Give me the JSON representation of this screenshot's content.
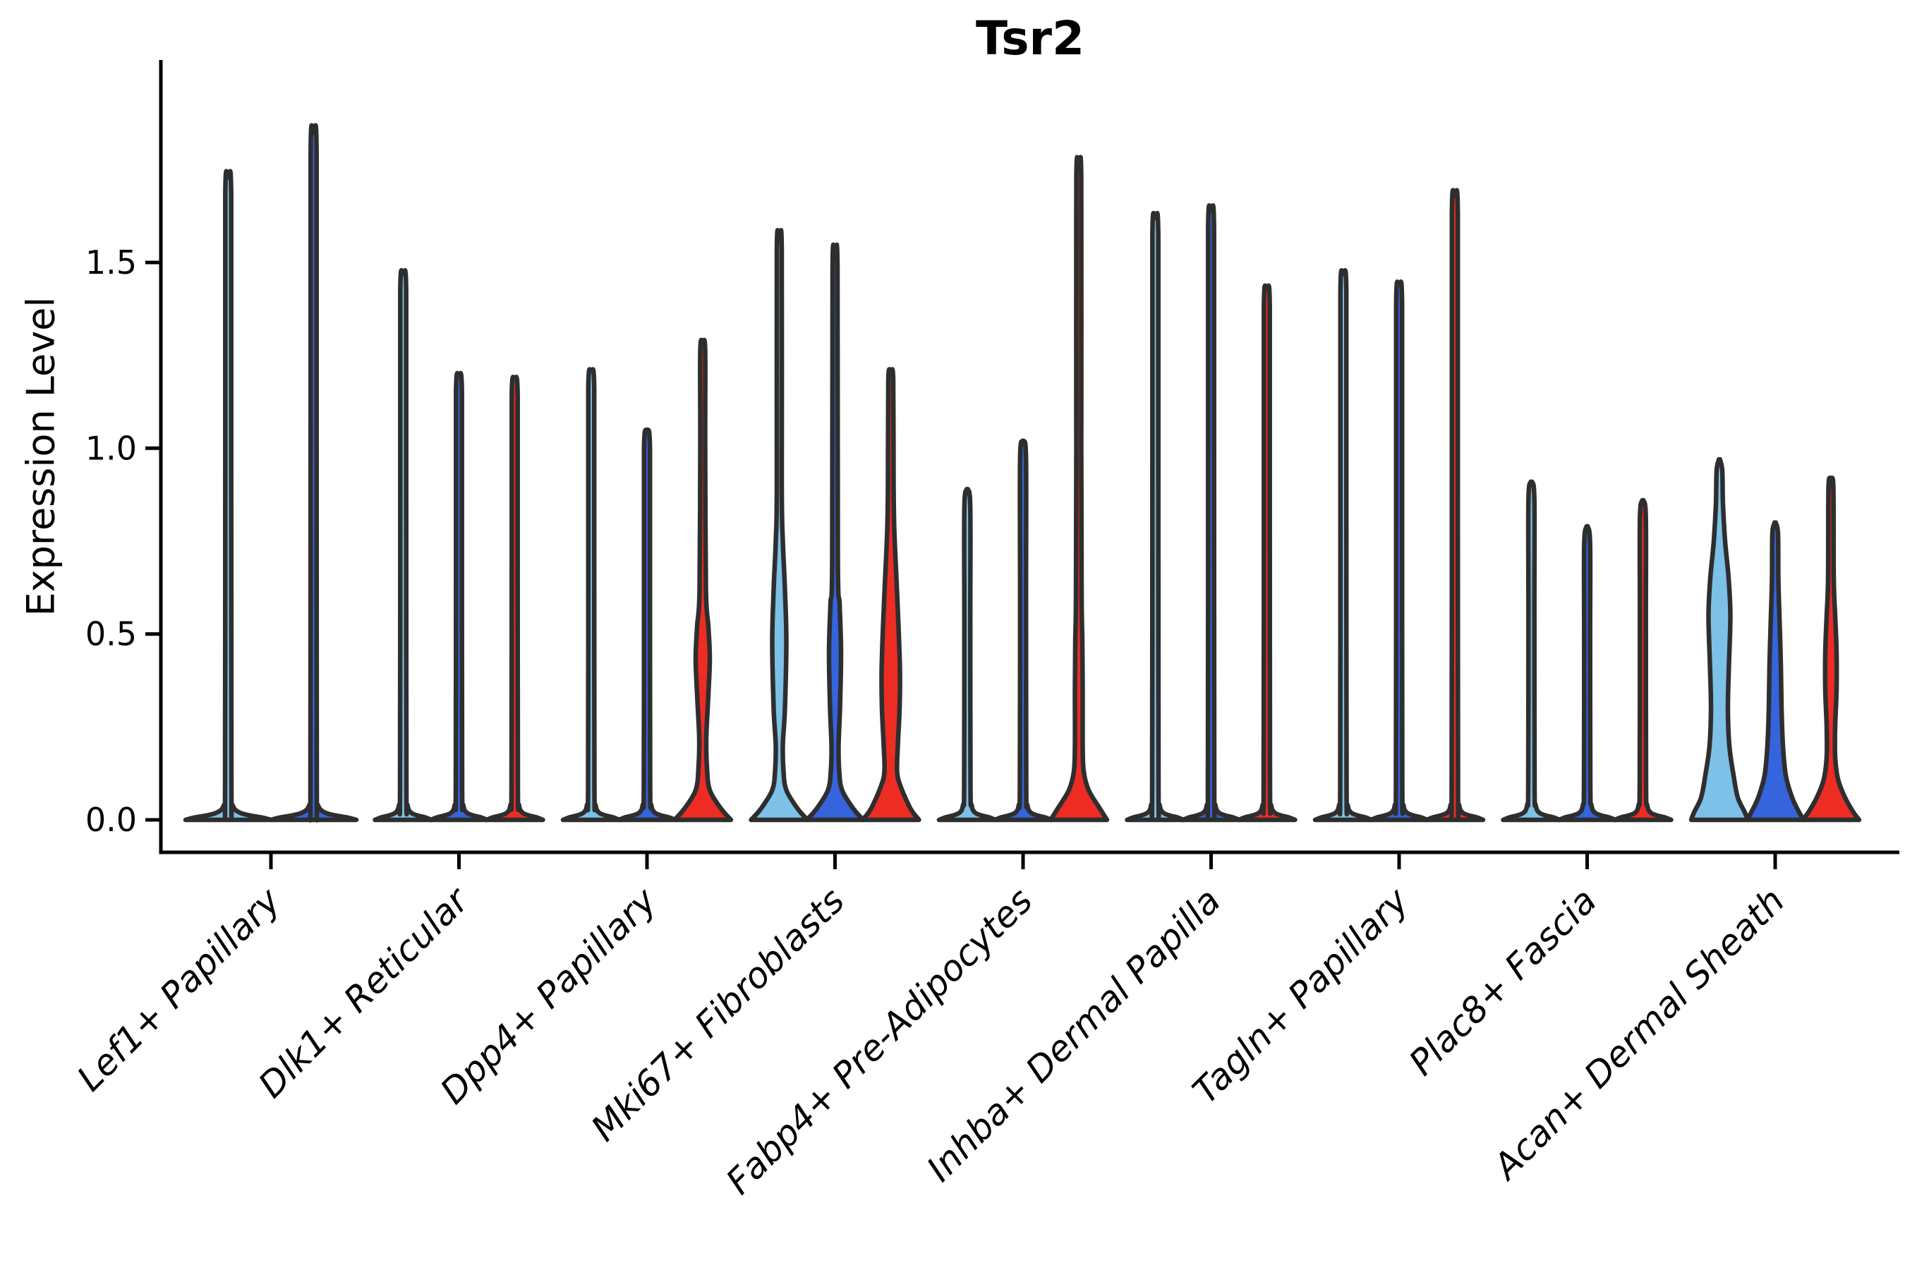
{
  "chart_data": {
    "type": "violin",
    "title": "Tsr2",
    "ylabel": "Expression Level",
    "ytick_labels": [
      "0.0",
      "0.5",
      "1.0",
      "1.5"
    ],
    "ytick_values": [
      0.0,
      0.5,
      1.0,
      1.5
    ],
    "ylim": [
      0,
      2.04
    ],
    "grid": false,
    "legend": "none",
    "x_label_rotation_deg": 45,
    "hue_colors": {
      "c1": "#7DC1E8",
      "c2": "#3564DC",
      "c3": "#ED2C24"
    },
    "outline_color": "#2E2E2E",
    "axis_color": "#000000",
    "categories": [
      "Lef1+ Papillary",
      "Dlk1+ Reticular",
      "Dpp4+ Papillary",
      "Mki67+ Fibroblasts",
      "Fabp4+ Pre-Adipocytes",
      "Inhba+ Dermal Papilla",
      "Tagln+ Papillary",
      "Plac8+ Fascia",
      "Acan+ Dermal Sheath"
    ],
    "groups": [
      {
        "category": "Lef1+ Papillary",
        "violins": [
          {
            "hue": "c1",
            "max": 1.73,
            "shape": "spike"
          },
          {
            "hue": "c2",
            "max": 1.85,
            "shape": "spike"
          }
        ]
      },
      {
        "category": "Dlk1+ Reticular",
        "violins": [
          {
            "hue": "c1",
            "max": 1.47,
            "shape": "spike"
          },
          {
            "hue": "c2",
            "max": 1.2,
            "shape": "spike"
          },
          {
            "hue": "c3",
            "max": 1.19,
            "shape": "spike"
          }
        ]
      },
      {
        "category": "Dpp4+ Papillary",
        "violins": [
          {
            "hue": "c1",
            "max": 1.21,
            "shape": "spike"
          },
          {
            "hue": "c2",
            "max": 1.05,
            "shape": "spike"
          },
          {
            "hue": "c3",
            "max": 1.29,
            "shape": "profile",
            "profile": [
              [
                0,
                40
              ],
              [
                0.03,
                26
              ],
              [
                0.08,
                10
              ],
              [
                0.14,
                6
              ],
              [
                0.22,
                5
              ],
              [
                0.32,
                7.5
              ],
              [
                0.43,
                10
              ],
              [
                0.52,
                8
              ],
              [
                0.62,
                4.5
              ],
              [
                1.0,
                3.5
              ],
              [
                1.26,
                3.5
              ],
              [
                1.29,
                0.8
              ]
            ]
          }
        ]
      },
      {
        "category": "Mki67+ Fibroblasts",
        "violins": [
          {
            "hue": "c1",
            "max": 1.56,
            "shape": "profile",
            "profile": [
              [
                0,
                40
              ],
              [
                0.03,
                26
              ],
              [
                0.08,
                10
              ],
              [
                0.13,
                6
              ],
              [
                0.2,
                5
              ],
              [
                0.3,
                8
              ],
              [
                0.48,
                10
              ],
              [
                0.62,
                8
              ],
              [
                0.75,
                5
              ],
              [
                0.9,
                3.5
              ],
              [
                1.53,
                3.5
              ],
              [
                1.56,
                0.8
              ]
            ]
          },
          {
            "hue": "c2",
            "max": 1.51,
            "shape": "profile",
            "profile": [
              [
                0,
                40
              ],
              [
                0.03,
                26
              ],
              [
                0.08,
                10
              ],
              [
                0.13,
                6
              ],
              [
                0.2,
                5
              ],
              [
                0.3,
                7
              ],
              [
                0.45,
                8.5
              ],
              [
                0.58,
                6.5
              ],
              [
                0.7,
                4
              ],
              [
                1.48,
                3.5
              ],
              [
                1.51,
                0.8
              ]
            ]
          },
          {
            "hue": "c3",
            "max": 1.21,
            "shape": "profile",
            "profile": [
              [
                0,
                40
              ],
              [
                0.03,
                28
              ],
              [
                0.09,
                14
              ],
              [
                0.13,
                9
              ],
              [
                0.2,
                10
              ],
              [
                0.3,
                12.5
              ],
              [
                0.4,
                13
              ],
              [
                0.52,
                11
              ],
              [
                0.65,
                8
              ],
              [
                0.78,
                5
              ],
              [
                0.9,
                4
              ],
              [
                1.18,
                3.5
              ],
              [
                1.21,
                0.8
              ]
            ]
          }
        ]
      },
      {
        "category": "Fabp4+ Pre-Adipocytes",
        "violins": [
          {
            "hue": "c1",
            "max": 0.89,
            "shape": "spike"
          },
          {
            "hue": "c2",
            "max": 1.02,
            "shape": "spike"
          },
          {
            "hue": "c3",
            "max": 1.75,
            "shape": "profile",
            "profile": [
              [
                0,
                40
              ],
              [
                0.03,
                30
              ],
              [
                0.08,
                14
              ],
              [
                0.13,
                7
              ],
              [
                0.2,
                5.5
              ],
              [
                0.35,
                5.5
              ],
              [
                0.48,
                5
              ],
              [
                0.6,
                4
              ],
              [
                1.0,
                3.5
              ],
              [
                1.72,
                3.5
              ],
              [
                1.75,
                0.8
              ]
            ]
          }
        ]
      },
      {
        "category": "Inhba+ Dermal Papilla",
        "violins": [
          {
            "hue": "c1",
            "max": 1.62,
            "shape": "spike"
          },
          {
            "hue": "c2",
            "max": 1.64,
            "shape": "spike"
          },
          {
            "hue": "c3",
            "max": 1.43,
            "shape": "spike"
          }
        ]
      },
      {
        "category": "Tagln+ Papillary",
        "violins": [
          {
            "hue": "c1",
            "max": 1.47,
            "shape": "spike"
          },
          {
            "hue": "c2",
            "max": 1.44,
            "shape": "spike"
          },
          {
            "hue": "c3",
            "max": 1.68,
            "shape": "spike"
          }
        ]
      },
      {
        "category": "Plac8+ Fascia",
        "violins": [
          {
            "hue": "c1",
            "max": 0.91,
            "shape": "spike"
          },
          {
            "hue": "c2",
            "max": 0.79,
            "shape": "spike"
          },
          {
            "hue": "c3",
            "max": 0.86,
            "shape": "spike"
          }
        ]
      },
      {
        "category": "Acan+ Dermal Sheath",
        "violins": [
          {
            "hue": "c1",
            "max": 0.97,
            "shape": "profile",
            "profile": [
              [
                0,
                40
              ],
              [
                0.02,
                36
              ],
              [
                0.06,
                26
              ],
              [
                0.12,
                20
              ],
              [
                0.2,
                14
              ],
              [
                0.3,
                12
              ],
              [
                0.42,
                13.5
              ],
              [
                0.55,
                15.5
              ],
              [
                0.65,
                13
              ],
              [
                0.75,
                8
              ],
              [
                0.85,
                5
              ],
              [
                0.94,
                4
              ],
              [
                0.97,
                0.8
              ]
            ]
          },
          {
            "hue": "c2",
            "max": 0.8,
            "shape": "profile",
            "profile": [
              [
                0,
                40
              ],
              [
                0.02,
                34
              ],
              [
                0.06,
                24
              ],
              [
                0.12,
                15
              ],
              [
                0.2,
                11
              ],
              [
                0.3,
                9
              ],
              [
                0.42,
                8
              ],
              [
                0.55,
                6
              ],
              [
                0.65,
                4.5
              ],
              [
                0.77,
                4
              ],
              [
                0.8,
                0.8
              ]
            ]
          },
          {
            "hue": "c3",
            "max": 0.92,
            "shape": "profile",
            "profile": [
              [
                0,
                40
              ],
              [
                0.02,
                32
              ],
              [
                0.06,
                20
              ],
              [
                0.11,
                10
              ],
              [
                0.17,
                6
              ],
              [
                0.25,
                6
              ],
              [
                0.35,
                8
              ],
              [
                0.45,
                8
              ],
              [
                0.55,
                6
              ],
              [
                0.65,
                4
              ],
              [
                0.89,
                3.5
              ],
              [
                0.92,
                0.8
              ]
            ]
          }
        ]
      }
    ]
  }
}
